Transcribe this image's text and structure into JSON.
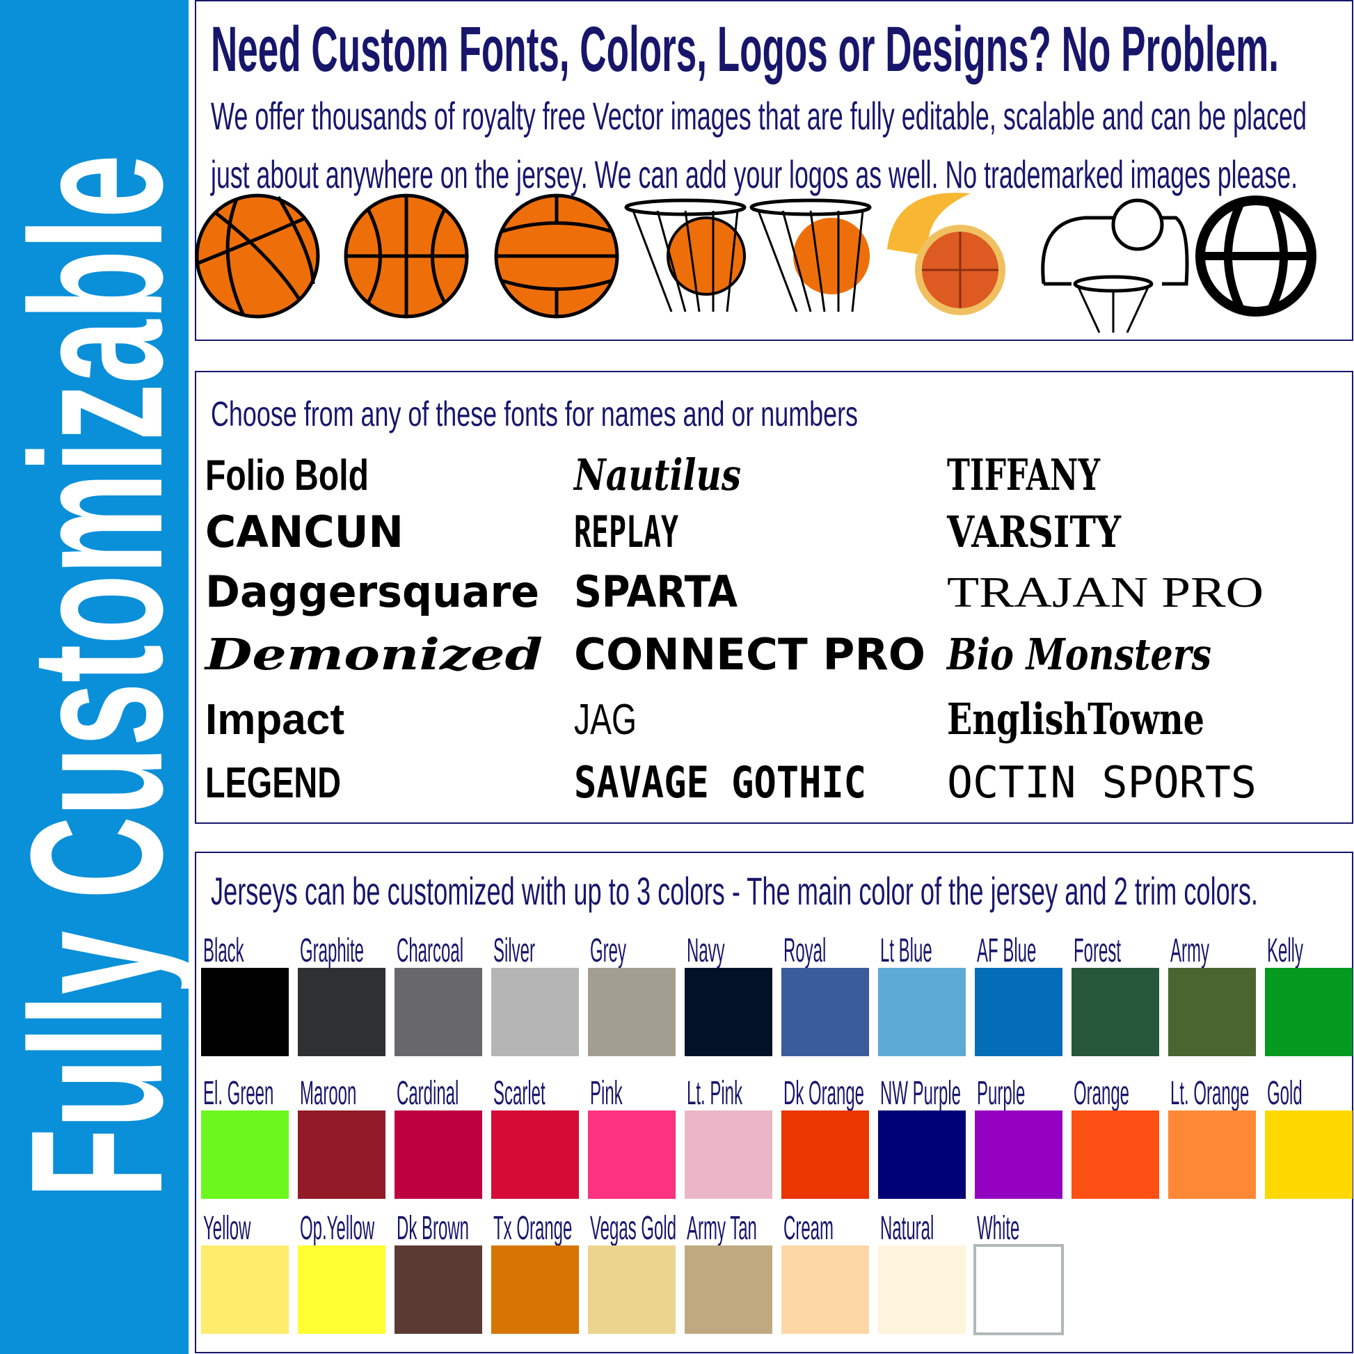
{
  "side_banner": {
    "text": "Fully Customizable",
    "bg_color": "#0a8fd9",
    "text_color": "#ffffff"
  },
  "graphics_panel": {
    "title": "Need Custom Fonts, Colors, Logos or Designs? No Problem.",
    "line1": "We offer thousands of royalty free Vector images that are fully editable, scalable and can be placed",
    "line2": "just about anywhere on the jersey.  We can add your logos as well.  No trademarked images please.",
    "icons": [
      "basketball-icon",
      "basketball-icon",
      "basketball-icon",
      "basketball-net-icon",
      "basketball-net-icon",
      "flaming-basketball-icon",
      "basketball-hoop-icon",
      "basketball-outline-icon"
    ]
  },
  "fonts_panel": {
    "title": "Choose from any of these fonts for names and or numbers",
    "columns": [
      [
        "Folio Bold",
        "CANCUN",
        "Daggersquare",
        "Demonized",
        "Impact",
        "LEGEND"
      ],
      [
        "Nautilus",
        "REPLAY",
        "SPARTA",
        "CONNECT PRO",
        "JAG",
        "SAVAGE GOTHIC"
      ],
      [
        "TIFFANY",
        "VARSITY",
        "TRAJAN PRO",
        "Bio Monsters",
        "EnglishTowne",
        "OCTIN SPORTS"
      ]
    ]
  },
  "colors_panel": {
    "title": "Jerseys can be customized with up to 3 colors - The main color of the jersey and 2 trim colors.",
    "rows": [
      [
        {
          "name": "Black",
          "color": "#000000"
        },
        {
          "name": "Graphite",
          "color": "#2e3134"
        },
        {
          "name": "Charcoal",
          "color": "#68686c"
        },
        {
          "name": "Silver",
          "color": "#b5b5b5"
        },
        {
          "name": "Grey",
          "color": "#a29f90"
        },
        {
          "name": "Navy",
          "color": "#021127"
        },
        {
          "name": "Royal",
          "color": "#3a5c9a"
        },
        {
          "name": "Lt Blue",
          "color": "#5eaad6"
        },
        {
          "name": "AF Blue",
          "color": "#036db8"
        },
        {
          "name": "Forest",
          "color": "#27573a"
        },
        {
          "name": "Army",
          "color": "#4a6530"
        },
        {
          "name": "Kelly",
          "color": "#04991f"
        }
      ],
      [
        {
          "name": "El. Green",
          "color": "#6cf71f"
        },
        {
          "name": "Maroon",
          "color": "#921b27"
        },
        {
          "name": "Cardinal",
          "color": "#bf0040"
        },
        {
          "name": "Scarlet",
          "color": "#d60c36"
        },
        {
          "name": "Pink",
          "color": "#fb3380"
        },
        {
          "name": "Lt. Pink",
          "color": "#ebb7c8"
        },
        {
          "name": "Dk Orange",
          "color": "#ea3600"
        },
        {
          "name": "NW Purple",
          "color": "#010177"
        },
        {
          "name": "Purple",
          "color": "#9400c0"
        },
        {
          "name": "Orange",
          "color": "#fd5015"
        },
        {
          "name": "Lt. Orange",
          "color": "#fe8836"
        },
        {
          "name": "Gold",
          "color": "#ffd800"
        }
      ],
      [
        {
          "name": "Yellow",
          "color": "#ffec6c"
        },
        {
          "name": "Op.Yellow",
          "color": "#fefe33"
        },
        {
          "name": "Dk Brown",
          "color": "#5c3a34"
        },
        {
          "name": "Tx Orange",
          "color": "#d77502"
        },
        {
          "name": "Vegas Gold",
          "color": "#ecd48e"
        },
        {
          "name": "Army Tan",
          "color": "#c0a880"
        },
        {
          "name": "Cream",
          "color": "#fed7a6"
        },
        {
          "name": "Natural",
          "color": "#fff4dc"
        },
        {
          "name": "White",
          "color": "#ffffff"
        }
      ]
    ]
  },
  "colors": {
    "text": "#17166b",
    "border": "#17166b",
    "ball": "#ee6f0a"
  }
}
